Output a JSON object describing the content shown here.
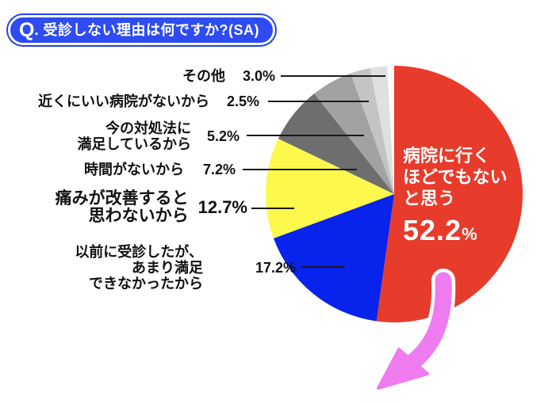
{
  "badge": {
    "q": "Q",
    "text": ". 受診しない理由は何ですか?(SA)"
  },
  "chart_data": {
    "type": "pie",
    "title": "受診しない理由は何ですか?(SA)",
    "unit": "%",
    "start": "top",
    "direction": "clockwise",
    "slices": [
      {
        "label": "病院に行くほどでもないと思う",
        "value": 52.2,
        "color": "#e73b2c"
      },
      {
        "label": "以前に受診したが、あまり満足できなかったから",
        "value": 17.2,
        "color": "#0823ec"
      },
      {
        "label": "痛みが改善すると思わないから",
        "value": 12.7,
        "color": "#fdf84c"
      },
      {
        "label": "時間がないから",
        "value": 7.2,
        "color": "#6e6e6e"
      },
      {
        "label": "今の対処法に満足しているから",
        "value": 5.2,
        "color": "#a2a2a2"
      },
      {
        "label": "近くにいい病院がないから",
        "value": 2.5,
        "color": "#c4c4c4"
      },
      {
        "label": "その他",
        "value": 3.0,
        "color": "#e0e0e0"
      }
    ]
  },
  "side_labels": [
    {
      "lines": [
        "その他"
      ],
      "pct": "3.0%"
    },
    {
      "lines": [
        "近くにいい病院がないから"
      ],
      "pct": "2.5%"
    },
    {
      "lines": [
        "今の対処法に",
        "満足しているから"
      ],
      "pct": "5.2%"
    },
    {
      "lines": [
        "時間がないから"
      ],
      "pct": "7.2%"
    },
    {
      "lines": [
        "痛みが改善すると",
        "思わないから"
      ],
      "pct": "12.7%",
      "emphasis": true
    },
    {
      "lines": [
        "以前に受診したが、",
        "あまり満足",
        "できなかったから"
      ],
      "pct": "17.2%"
    }
  ],
  "main_label": {
    "lines": [
      "病院に行く",
      "ほどでもない",
      "と思う"
    ],
    "value": "52.2",
    "unit": "%"
  },
  "colors": {
    "badge_blue": "#2e4cf2",
    "arrow_pink": "#ee7cf0",
    "callout_line": "#1a1a1a",
    "label_text": "#111111",
    "main_text": "#ffffff"
  }
}
